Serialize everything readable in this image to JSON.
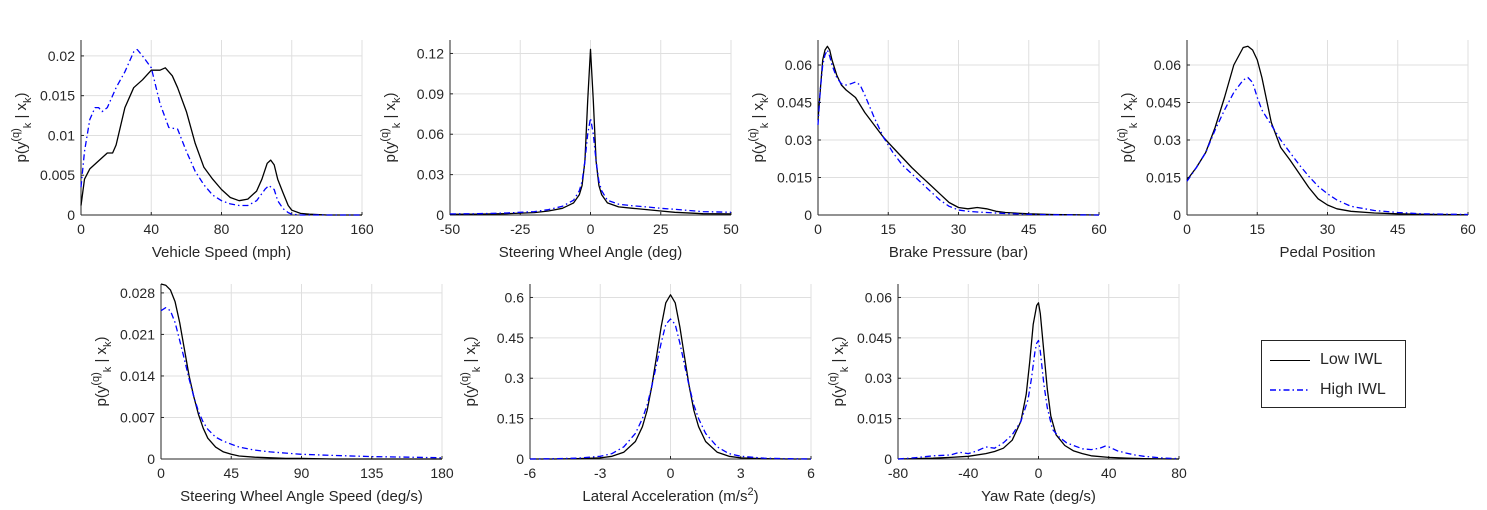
{
  "legend": {
    "entries": [
      {
        "label": "Low IWL",
        "color": "#000000",
        "dash": "solid"
      },
      {
        "label": "High IWL",
        "color": "#0000ff",
        "dash": "dashdot"
      }
    ]
  },
  "chart_data": [
    {
      "type": "line",
      "xlabel": "Vehicle Speed (mph)",
      "ylabel": "p(y_k^(q) | x_k)",
      "xlim": [
        0,
        160
      ],
      "ylim": [
        0,
        0.022
      ],
      "xticks": [
        0,
        40,
        80,
        120,
        160
      ],
      "yticks": [
        0,
        0.005,
        0.01,
        0.015,
        0.02
      ],
      "yticklabels": [
        "0",
        "0.005",
        "0.01",
        "0.015",
        "0.02"
      ],
      "series": [
        {
          "name": "Low IWL",
          "x": [
            0,
            2,
            5,
            10,
            15,
            18,
            20,
            25,
            30,
            35,
            40,
            45,
            48,
            52,
            55,
            60,
            65,
            70,
            75,
            80,
            85,
            90,
            95,
            100,
            103,
            106,
            108,
            110,
            112,
            115,
            118,
            120,
            125,
            130,
            140,
            160
          ],
          "y": [
            0.0012,
            0.0045,
            0.0058,
            0.0068,
            0.0078,
            0.0078,
            0.0088,
            0.0135,
            0.016,
            0.017,
            0.0182,
            0.0182,
            0.0185,
            0.0175,
            0.016,
            0.013,
            0.009,
            0.006,
            0.0045,
            0.0032,
            0.0022,
            0.0018,
            0.002,
            0.003,
            0.0045,
            0.0065,
            0.0069,
            0.0063,
            0.0045,
            0.0028,
            0.0012,
            0.0006,
            0.0002,
            0.0001,
            0.0,
            0.0
          ]
        },
        {
          "name": "High IWL",
          "x": [
            0,
            2,
            5,
            8,
            10,
            12,
            15,
            20,
            25,
            30,
            32,
            35,
            40,
            45,
            50,
            55,
            60,
            65,
            70,
            75,
            80,
            85,
            90,
            95,
            100,
            105,
            107,
            110,
            112,
            115,
            118,
            120,
            125,
            130,
            160
          ],
          "y": [
            0.0035,
            0.008,
            0.012,
            0.0135,
            0.0135,
            0.013,
            0.0135,
            0.016,
            0.018,
            0.0205,
            0.0208,
            0.02,
            0.0185,
            0.014,
            0.011,
            0.0108,
            0.008,
            0.0055,
            0.0038,
            0.0025,
            0.0018,
            0.0014,
            0.0012,
            0.0012,
            0.0018,
            0.0033,
            0.0037,
            0.0032,
            0.0018,
            0.0008,
            0.0003,
            0.0001,
            0.0,
            0.0,
            0.0
          ]
        }
      ]
    },
    {
      "type": "line",
      "xlabel": "Steering Wheel Angle (deg)",
      "ylabel": "p(y_k^(q) | x_k)",
      "xlim": [
        -50,
        50
      ],
      "ylim": [
        0,
        0.13
      ],
      "xticks": [
        -50,
        -25,
        0,
        25,
        50
      ],
      "yticks": [
        0,
        0.03,
        0.06,
        0.09,
        0.12
      ],
      "yticklabels": [
        "0",
        "0.03",
        "0.06",
        "0.09",
        "0.12"
      ],
      "series": [
        {
          "name": "Low IWL",
          "x": [
            -50,
            -40,
            -30,
            -20,
            -15,
            -10,
            -6,
            -4,
            -3,
            -2,
            -1,
            0,
            1,
            2,
            3,
            4,
            6,
            10,
            15,
            20,
            25,
            30,
            40,
            50
          ],
          "y": [
            0.0005,
            0.0006,
            0.001,
            0.0018,
            0.003,
            0.005,
            0.009,
            0.015,
            0.022,
            0.04,
            0.085,
            0.123,
            0.085,
            0.04,
            0.022,
            0.015,
            0.009,
            0.006,
            0.005,
            0.004,
            0.003,
            0.002,
            0.001,
            0.0008
          ]
        },
        {
          "name": "High IWL",
          "x": [
            -50,
            -40,
            -30,
            -20,
            -15,
            -10,
            -6,
            -4,
            -3,
            -2,
            -1,
            0,
            1,
            2,
            3,
            4,
            6,
            10,
            15,
            20,
            25,
            30,
            40,
            50
          ],
          "y": [
            0.0008,
            0.001,
            0.0015,
            0.0025,
            0.004,
            0.0065,
            0.011,
            0.018,
            0.025,
            0.04,
            0.06,
            0.072,
            0.06,
            0.04,
            0.025,
            0.018,
            0.011,
            0.008,
            0.0068,
            0.006,
            0.005,
            0.0042,
            0.0025,
            0.002
          ]
        }
      ]
    },
    {
      "type": "line",
      "xlabel": "Brake Pressure (bar)",
      "ylabel": "p(y_k^(q) | x_k)",
      "xlim": [
        0,
        60
      ],
      "ylim": [
        0,
        0.07
      ],
      "xticks": [
        0,
        15,
        30,
        45,
        60
      ],
      "yticks": [
        0,
        0.015,
        0.03,
        0.045,
        0.06
      ],
      "yticklabels": [
        "0",
        "0.015",
        "0.03",
        "0.045",
        "0.06"
      ],
      "series": [
        {
          "name": "Low IWL",
          "x": [
            0,
            0.5,
            1,
            1.5,
            2,
            2.5,
            3,
            4,
            5,
            6,
            8,
            10,
            12,
            14,
            16,
            18,
            20,
            22,
            24,
            26,
            28,
            30,
            32,
            34,
            36,
            38,
            40,
            45,
            50,
            60
          ],
          "y": [
            0.038,
            0.05,
            0.062,
            0.066,
            0.0675,
            0.066,
            0.062,
            0.056,
            0.052,
            0.05,
            0.047,
            0.041,
            0.036,
            0.031,
            0.027,
            0.023,
            0.019,
            0.0155,
            0.012,
            0.0085,
            0.005,
            0.003,
            0.0025,
            0.003,
            0.0025,
            0.0015,
            0.001,
            0.0005,
            0.0002,
            0.0
          ]
        },
        {
          "name": "High IWL",
          "x": [
            0,
            0.5,
            1,
            1.5,
            2,
            2.5,
            3,
            4,
            5,
            6,
            7,
            8,
            9,
            10,
            12,
            14,
            16,
            18,
            20,
            22,
            24,
            26,
            28,
            30,
            32,
            34,
            36,
            40,
            45,
            50,
            60
          ],
          "y": [
            0.036,
            0.05,
            0.06,
            0.064,
            0.066,
            0.0635,
            0.06,
            0.055,
            0.0525,
            0.052,
            0.0525,
            0.0532,
            0.052,
            0.048,
            0.039,
            0.031,
            0.025,
            0.02,
            0.0165,
            0.013,
            0.0095,
            0.006,
            0.0035,
            0.002,
            0.0015,
            0.0012,
            0.001,
            0.0006,
            0.0003,
            0.0001,
            0.0
          ]
        }
      ]
    },
    {
      "type": "line",
      "xlabel": "Pedal Position",
      "ylabel": "p(y_k^(q) | x_k)",
      "xlim": [
        0,
        60
      ],
      "ylim": [
        0,
        0.07
      ],
      "xticks": [
        0,
        15,
        30,
        45,
        60
      ],
      "yticks": [
        0,
        0.015,
        0.03,
        0.045,
        0.06
      ],
      "yticklabels": [
        "0",
        "0.015",
        "0.03",
        "0.045",
        "0.06"
      ],
      "series": [
        {
          "name": "Low IWL",
          "x": [
            0,
            2,
            4,
            6,
            8,
            10,
            12,
            13,
            14,
            15,
            16,
            17,
            18,
            20,
            22,
            24,
            26,
            28,
            30,
            32,
            35,
            40,
            45,
            50,
            60
          ],
          "y": [
            0.014,
            0.019,
            0.025,
            0.035,
            0.047,
            0.06,
            0.067,
            0.0675,
            0.066,
            0.062,
            0.055,
            0.046,
            0.037,
            0.027,
            0.022,
            0.0165,
            0.011,
            0.0065,
            0.004,
            0.0025,
            0.0015,
            0.0008,
            0.0005,
            0.0003,
            0.0001
          ]
        },
        {
          "name": "High IWL",
          "x": [
            0,
            2,
            4,
            6,
            8,
            10,
            12,
            13,
            14,
            15,
            16,
            18,
            20,
            22,
            24,
            26,
            28,
            30,
            32,
            35,
            40,
            45,
            50,
            60
          ],
          "y": [
            0.0135,
            0.019,
            0.025,
            0.034,
            0.042,
            0.049,
            0.054,
            0.055,
            0.053,
            0.047,
            0.042,
            0.036,
            0.03,
            0.025,
            0.02,
            0.0155,
            0.0115,
            0.0085,
            0.006,
            0.0035,
            0.0018,
            0.001,
            0.0005,
            0.0002
          ]
        }
      ]
    },
    {
      "type": "line",
      "xlabel": "Steering Wheel Angle Speed (deg/s)",
      "ylabel": "p(y_k^(q) | x_k)",
      "xlim": [
        0,
        180
      ],
      "ylim": [
        0,
        0.0295
      ],
      "xticks": [
        0,
        45,
        90,
        135,
        180
      ],
      "yticks": [
        0,
        0.007,
        0.014,
        0.021,
        0.028
      ],
      "yticklabels": [
        "0",
        "0.007",
        "0.014",
        "0.021",
        "0.028"
      ],
      "series": [
        {
          "name": "Low IWL",
          "x": [
            0,
            3,
            6,
            9,
            12,
            15,
            18,
            21,
            24,
            27,
            30,
            35,
            40,
            45,
            50,
            60,
            70,
            80,
            90,
            110,
            135,
            180
          ],
          "y": [
            0.0295,
            0.0293,
            0.0285,
            0.0265,
            0.023,
            0.0185,
            0.014,
            0.0105,
            0.0075,
            0.0052,
            0.0035,
            0.002,
            0.0012,
            0.0008,
            0.0005,
            0.0003,
            0.0002,
            0.0001,
            0.0001,
            0.0,
            0.0,
            0.0
          ]
        },
        {
          "name": "High IWL",
          "x": [
            0,
            3,
            6,
            9,
            12,
            15,
            18,
            21,
            24,
            27,
            30,
            35,
            40,
            45,
            50,
            60,
            70,
            80,
            90,
            110,
            135,
            160,
            180
          ],
          "y": [
            0.025,
            0.0255,
            0.025,
            0.023,
            0.02,
            0.0168,
            0.0135,
            0.0105,
            0.008,
            0.0062,
            0.005,
            0.0037,
            0.003,
            0.0025,
            0.002,
            0.0015,
            0.0012,
            0.001,
            0.0008,
            0.0006,
            0.0004,
            0.0003,
            0.0002
          ]
        }
      ]
    },
    {
      "type": "line",
      "xlabel": "Lateral Acceleration (m/s²)",
      "ylabel": "p(y_k^(q) | x_k)",
      "xlim": [
        -6,
        6
      ],
      "ylim": [
        0,
        0.65
      ],
      "xticks": [
        -6,
        -3,
        0,
        3,
        6
      ],
      "yticks": [
        0,
        0.15,
        0.3,
        0.45,
        0.6
      ],
      "yticklabels": [
        "0",
        "0.15",
        "0.3",
        "0.45",
        "0.6"
      ],
      "series": [
        {
          "name": "Low IWL",
          "x": [
            -6,
            -5,
            -4,
            -3,
            -2.5,
            -2,
            -1.5,
            -1.2,
            -1,
            -0.8,
            -0.6,
            -0.4,
            -0.2,
            0,
            0.2,
            0.4,
            0.6,
            0.8,
            1,
            1.2,
            1.5,
            2,
            2.5,
            3,
            4,
            5,
            6
          ],
          "y": [
            0.0,
            0.0,
            0.001,
            0.004,
            0.01,
            0.025,
            0.065,
            0.12,
            0.18,
            0.27,
            0.38,
            0.49,
            0.58,
            0.61,
            0.58,
            0.49,
            0.38,
            0.27,
            0.18,
            0.12,
            0.065,
            0.025,
            0.01,
            0.004,
            0.001,
            0.0,
            0.0
          ]
        },
        {
          "name": "High IWL",
          "x": [
            -6,
            -5,
            -4,
            -3,
            -2.5,
            -2,
            -1.5,
            -1.2,
            -1,
            -0.8,
            -0.6,
            -0.4,
            -0.2,
            0,
            0.2,
            0.4,
            0.6,
            0.8,
            1,
            1.2,
            1.5,
            2,
            2.5,
            3,
            4,
            5,
            6
          ],
          "y": [
            0.0,
            0.001,
            0.003,
            0.01,
            0.02,
            0.045,
            0.095,
            0.15,
            0.2,
            0.27,
            0.35,
            0.43,
            0.5,
            0.52,
            0.5,
            0.43,
            0.35,
            0.27,
            0.2,
            0.15,
            0.095,
            0.045,
            0.02,
            0.01,
            0.003,
            0.001,
            0.0
          ]
        }
      ]
    },
    {
      "type": "line",
      "xlabel": "Yaw Rate (deg/s)",
      "ylabel": "p(y_k^(q) | x_k)",
      "xlim": [
        -80,
        80
      ],
      "ylim": [
        0,
        0.065
      ],
      "xticks": [
        -80,
        -40,
        0,
        40,
        80
      ],
      "yticks": [
        0,
        0.015,
        0.03,
        0.045,
        0.06
      ],
      "yticklabels": [
        "0",
        "0.015",
        "0.03",
        "0.045",
        "0.06"
      ],
      "series": [
        {
          "name": "Low IWL",
          "x": [
            -80,
            -60,
            -50,
            -40,
            -30,
            -25,
            -20,
            -15,
            -10,
            -7,
            -5,
            -3,
            -1,
            0,
            1,
            3,
            5,
            7,
            10,
            15,
            20,
            25,
            30,
            40,
            50,
            60,
            80
          ],
          "y": [
            0.0,
            0.0003,
            0.0006,
            0.001,
            0.002,
            0.0028,
            0.004,
            0.007,
            0.014,
            0.024,
            0.036,
            0.05,
            0.057,
            0.058,
            0.054,
            0.04,
            0.026,
            0.016,
            0.009,
            0.005,
            0.003,
            0.002,
            0.0012,
            0.0006,
            0.0003,
            0.0001,
            0.0
          ]
        },
        {
          "name": "High IWL",
          "x": [
            -80,
            -70,
            -60,
            -50,
            -45,
            -40,
            -35,
            -30,
            -25,
            -20,
            -15,
            -10,
            -6,
            -4,
            -2,
            -1,
            0,
            1,
            3,
            5,
            8,
            12,
            16,
            20,
            25,
            30,
            35,
            38,
            40,
            45,
            50,
            55,
            60,
            70,
            80
          ],
          "y": [
            0.0,
            0.0005,
            0.0012,
            0.0015,
            0.0025,
            0.002,
            0.003,
            0.0045,
            0.004,
            0.006,
            0.009,
            0.014,
            0.022,
            0.03,
            0.04,
            0.043,
            0.044,
            0.04,
            0.028,
            0.019,
            0.011,
            0.008,
            0.006,
            0.005,
            0.0038,
            0.0035,
            0.004,
            0.0048,
            0.0045,
            0.003,
            0.0022,
            0.0015,
            0.001,
            0.0004,
            0.0001
          ]
        }
      ]
    }
  ]
}
